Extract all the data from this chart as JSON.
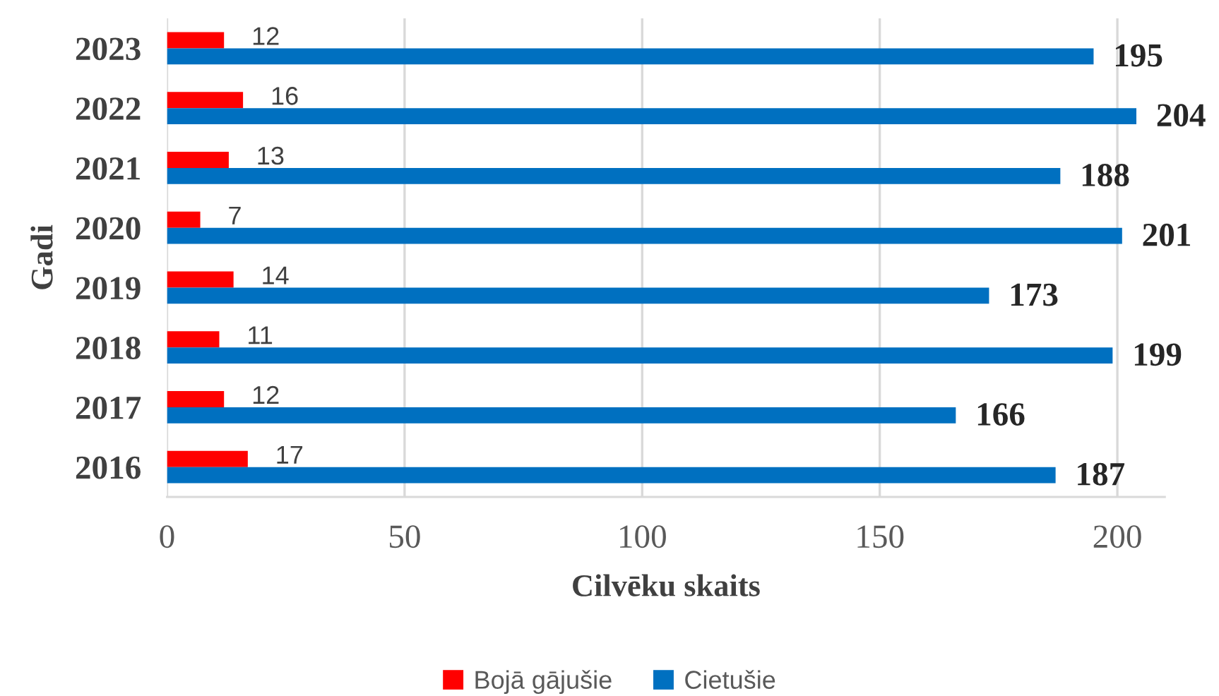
{
  "chart_data": {
    "type": "bar",
    "orientation": "horizontal",
    "xlabel": "Cilvēku skaits",
    "ylabel": "Gadi",
    "categories": [
      "2023",
      "2022",
      "2021",
      "2020",
      "2019",
      "2018",
      "2017",
      "2016"
    ],
    "series": [
      {
        "name": "Bojā gājušie",
        "color": "#ff0000",
        "values": [
          12,
          16,
          13,
          7,
          14,
          11,
          12,
          17
        ]
      },
      {
        "name": "Cietušie",
        "color": "#0070c0",
        "values": [
          195,
          204,
          188,
          201,
          173,
          199,
          166,
          187
        ]
      }
    ],
    "xlim": [
      0,
      210
    ],
    "xticks": [
      0,
      50,
      100,
      150,
      200
    ],
    "grid": "x",
    "legend": "bottom",
    "data_labels": true
  }
}
